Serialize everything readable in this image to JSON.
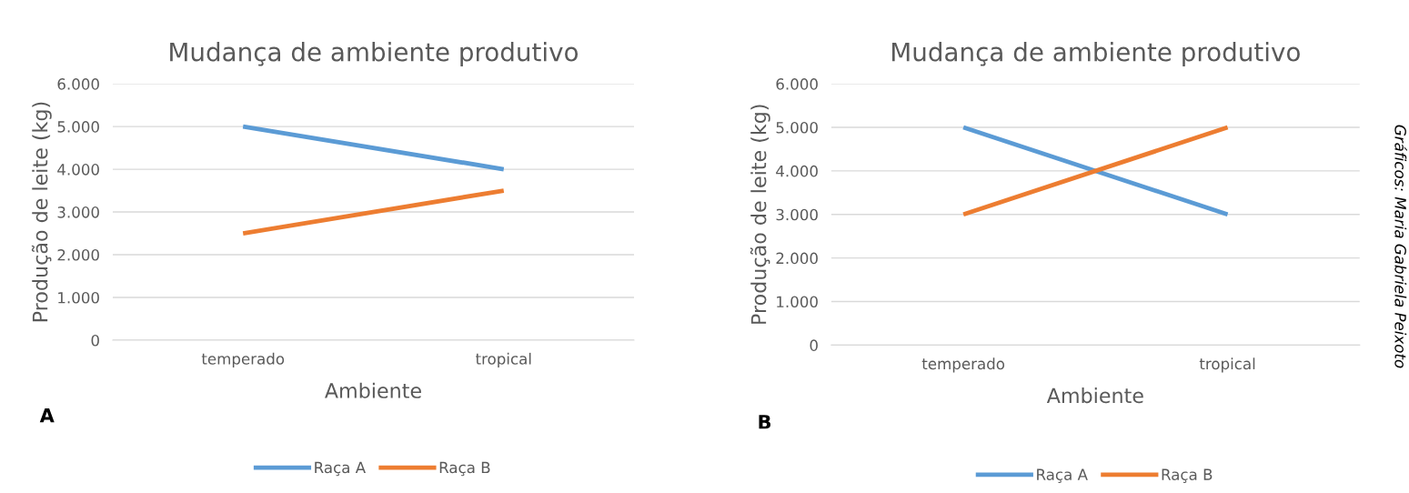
{
  "chart_data": [
    {
      "type": "line",
      "title": "Mudança de ambiente produtivo",
      "xlabel": "Ambiente",
      "ylabel": "Produção de leite (kg)",
      "categories": [
        "temperado",
        "tropical"
      ],
      "series": [
        {
          "name": "Raça A",
          "color": "#5b9bd5",
          "values": [
            5000,
            4000
          ]
        },
        {
          "name": "Raça B",
          "color": "#ed7d31",
          "values": [
            2500,
            3500
          ]
        }
      ],
      "ylim": [
        0,
        6000
      ],
      "yticks": [
        {
          "value": 0,
          "label": "0"
        },
        {
          "value": 1000,
          "label": "1.000"
        },
        {
          "value": 2000,
          "label": "2.000"
        },
        {
          "value": 3000,
          "label": "3.000"
        },
        {
          "value": 4000,
          "label": "4.000"
        },
        {
          "value": 5000,
          "label": "5.000"
        },
        {
          "value": 6000,
          "label": "6.000"
        }
      ],
      "grid": "y",
      "legend": "bottom",
      "annotations": [
        "A"
      ]
    },
    {
      "type": "line",
      "title": "Mudança de ambiente produtivo",
      "xlabel": "Ambiente",
      "ylabel": "Produção de leite (kg)",
      "categories": [
        "temperado",
        "tropical"
      ],
      "series": [
        {
          "name": "Raça A",
          "color": "#5b9bd5",
          "values": [
            5000,
            3000
          ]
        },
        {
          "name": "Raça B",
          "color": "#ed7d31",
          "values": [
            3000,
            5000
          ]
        }
      ],
      "ylim": [
        0,
        6000
      ],
      "yticks": [
        {
          "value": 0,
          "label": "0"
        },
        {
          "value": 1000,
          "label": "1.000"
        },
        {
          "value": 2000,
          "label": "2.000"
        },
        {
          "value": 3000,
          "label": "3.000"
        },
        {
          "value": 4000,
          "label": "4.000"
        },
        {
          "value": 5000,
          "label": "5.000"
        },
        {
          "value": 6000,
          "label": "6.000"
        }
      ],
      "grid": "y",
      "legend": "bottom",
      "annotations": [
        "B",
        "Gráficos: Maria Gabriela Peixoto"
      ]
    }
  ]
}
